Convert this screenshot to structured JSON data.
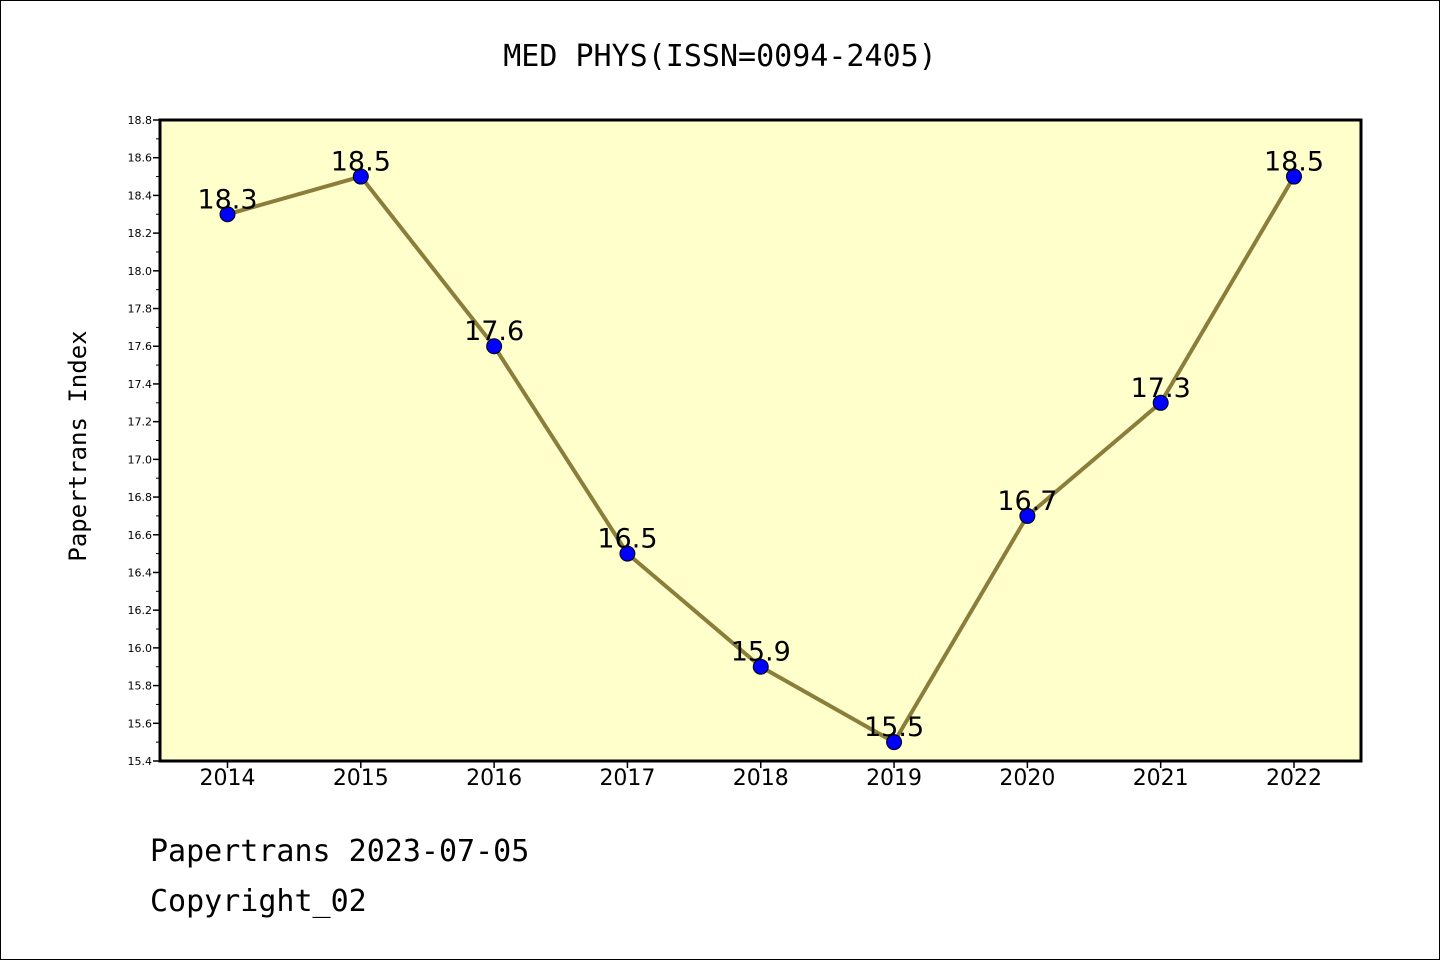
{
  "chart_data": {
    "type": "line",
    "title": "MED PHYS(ISSN=0094-2405)",
    "xlabel": "",
    "ylabel": "Papertrans Index",
    "categories": [
      "2014",
      "2015",
      "2016",
      "2017",
      "2018",
      "2019",
      "2020",
      "2021",
      "2022"
    ],
    "series": [
      {
        "values": [
          18.3,
          18.5,
          17.6,
          16.5,
          15.9,
          15.5,
          16.7,
          17.3,
          18.5
        ],
        "data_labels": [
          "18.3",
          "18.5",
          "17.6",
          "16.5",
          "15.9",
          "15.5",
          "16.7",
          "17.3",
          "18.5"
        ]
      }
    ],
    "ylim": [
      15.4,
      18.8
    ],
    "y_ticks": [
      "15.4",
      "15.6",
      "15.8",
      "16.0",
      "16.2",
      "16.4",
      "16.6",
      "16.8",
      "17.0",
      "17.2",
      "17.4",
      "17.6",
      "17.8",
      "18.0",
      "18.2",
      "18.4",
      "18.6",
      "18.8"
    ],
    "grid": false,
    "legend": "none",
    "colors": {
      "plot_background": "#ffffcc",
      "line": "#8b7d3a",
      "marker": "#0000ff",
      "marker_edge": "#000000",
      "axis": "#000000"
    }
  },
  "footer": {
    "date_line": "Papertrans 2023-07-05",
    "copyright": "Copyright_02"
  }
}
